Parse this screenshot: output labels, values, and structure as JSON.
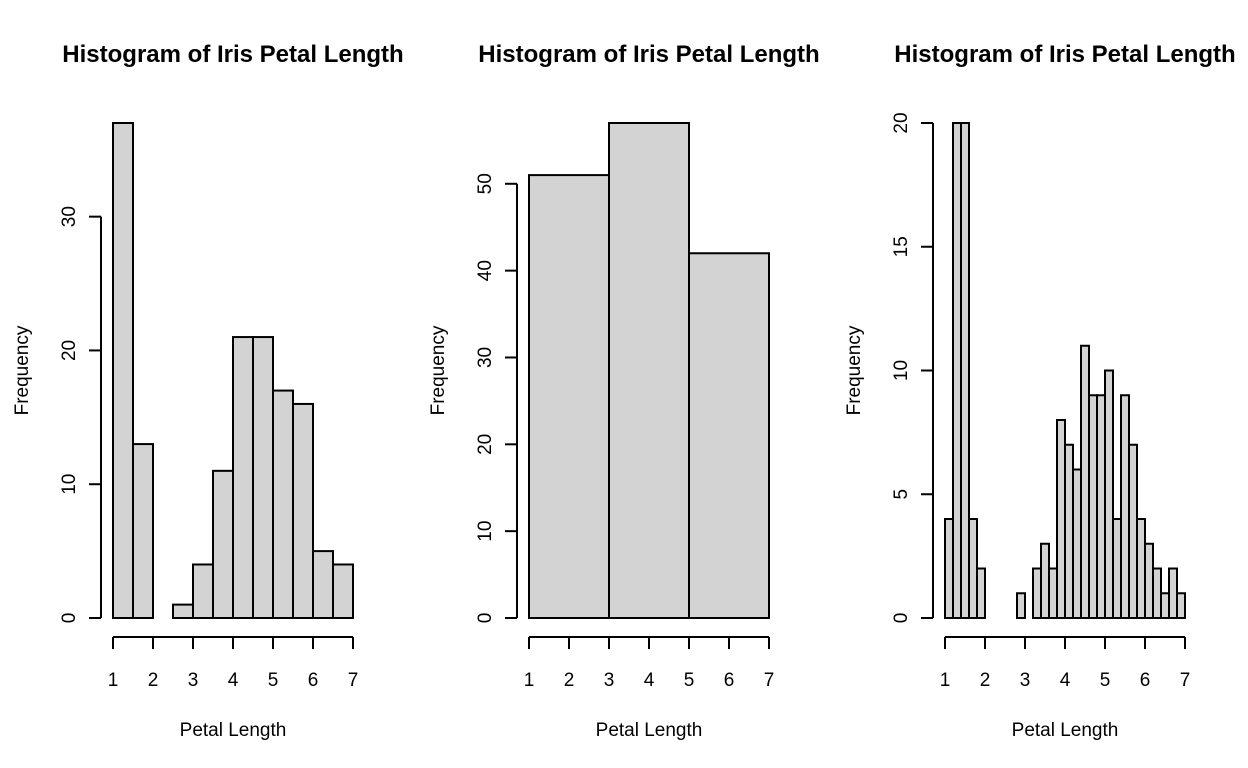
{
  "colors": {
    "bar_fill": "#d3d3d3",
    "bar_stroke": "#000000",
    "background": "#ffffff"
  },
  "chart_data": [
    {
      "type": "bar",
      "title": "Histogram of Iris Petal Length",
      "xlabel": "Petal Length",
      "ylabel": "Frequency",
      "xlim": [
        1,
        7
      ],
      "ylim": [
        0,
        37
      ],
      "x_ticks": [
        1,
        2,
        3,
        4,
        5,
        6,
        7
      ],
      "y_ticks": [
        0,
        10,
        20,
        30
      ],
      "bins": [
        {
          "x0": 1.0,
          "x1": 1.5,
          "count": 37
        },
        {
          "x0": 1.5,
          "x1": 2.0,
          "count": 13
        },
        {
          "x0": 2.0,
          "x1": 2.5,
          "count": 0
        },
        {
          "x0": 2.5,
          "x1": 3.0,
          "count": 1
        },
        {
          "x0": 3.0,
          "x1": 3.5,
          "count": 4
        },
        {
          "x0": 3.5,
          "x1": 4.0,
          "count": 11
        },
        {
          "x0": 4.0,
          "x1": 4.5,
          "count": 21
        },
        {
          "x0": 4.5,
          "x1": 5.0,
          "count": 21
        },
        {
          "x0": 5.0,
          "x1": 5.5,
          "count": 17
        },
        {
          "x0": 5.5,
          "x1": 6.0,
          "count": 16
        },
        {
          "x0": 6.0,
          "x1": 6.5,
          "count": 5
        },
        {
          "x0": 6.5,
          "x1": 7.0,
          "count": 4
        }
      ]
    },
    {
      "type": "bar",
      "title": "Histogram of Iris Petal Length",
      "xlabel": "Petal Length",
      "ylabel": "Frequency",
      "xlim": [
        1,
        7
      ],
      "ylim": [
        0,
        57
      ],
      "x_ticks": [
        1,
        2,
        3,
        4,
        5,
        6,
        7
      ],
      "y_ticks": [
        0,
        10,
        20,
        30,
        40,
        50
      ],
      "bins": [
        {
          "x0": 1,
          "x1": 3,
          "count": 51
        },
        {
          "x0": 3,
          "x1": 5,
          "count": 57
        },
        {
          "x0": 5,
          "x1": 7,
          "count": 42
        }
      ]
    },
    {
      "type": "bar",
      "title": "Histogram of Iris Petal Length",
      "xlabel": "Petal Length",
      "ylabel": "Frequency",
      "xlim": [
        1,
        7
      ],
      "ylim": [
        0,
        20
      ],
      "x_ticks": [
        1,
        2,
        3,
        4,
        5,
        6,
        7
      ],
      "y_ticks": [
        0,
        5,
        10,
        15,
        20
      ],
      "bins": [
        {
          "x0": 1.0,
          "x1": 1.2,
          "count": 4
        },
        {
          "x0": 1.2,
          "x1": 1.4,
          "count": 20
        },
        {
          "x0": 1.4,
          "x1": 1.6,
          "count": 20
        },
        {
          "x0": 1.6,
          "x1": 1.8,
          "count": 4
        },
        {
          "x0": 1.8,
          "x1": 2.0,
          "count": 2
        },
        {
          "x0": 2.0,
          "x1": 2.2,
          "count": 0
        },
        {
          "x0": 2.2,
          "x1": 2.4,
          "count": 0
        },
        {
          "x0": 2.4,
          "x1": 2.6,
          "count": 0
        },
        {
          "x0": 2.6,
          "x1": 2.8,
          "count": 0
        },
        {
          "x0": 2.8,
          "x1": 3.0,
          "count": 1
        },
        {
          "x0": 3.0,
          "x1": 3.2,
          "count": 0
        },
        {
          "x0": 3.2,
          "x1": 3.4,
          "count": 2
        },
        {
          "x0": 3.4,
          "x1": 3.6,
          "count": 3
        },
        {
          "x0": 3.6,
          "x1": 3.8,
          "count": 2
        },
        {
          "x0": 3.8,
          "x1": 4.0,
          "count": 8
        },
        {
          "x0": 4.0,
          "x1": 4.2,
          "count": 7
        },
        {
          "x0": 4.2,
          "x1": 4.4,
          "count": 6
        },
        {
          "x0": 4.4,
          "x1": 4.6,
          "count": 11
        },
        {
          "x0": 4.6,
          "x1": 4.8,
          "count": 9
        },
        {
          "x0": 4.8,
          "x1": 5.0,
          "count": 9
        },
        {
          "x0": 5.0,
          "x1": 5.2,
          "count": 10
        },
        {
          "x0": 5.2,
          "x1": 5.4,
          "count": 4
        },
        {
          "x0": 5.4,
          "x1": 5.6,
          "count": 9
        },
        {
          "x0": 5.6,
          "x1": 5.8,
          "count": 7
        },
        {
          "x0": 5.8,
          "x1": 6.0,
          "count": 4
        },
        {
          "x0": 6.0,
          "x1": 6.2,
          "count": 3
        },
        {
          "x0": 6.2,
          "x1": 6.4,
          "count": 2
        },
        {
          "x0": 6.4,
          "x1": 6.6,
          "count": 1
        },
        {
          "x0": 6.6,
          "x1": 6.8,
          "count": 2
        },
        {
          "x0": 6.8,
          "x1": 7.0,
          "count": 1
        }
      ]
    }
  ]
}
